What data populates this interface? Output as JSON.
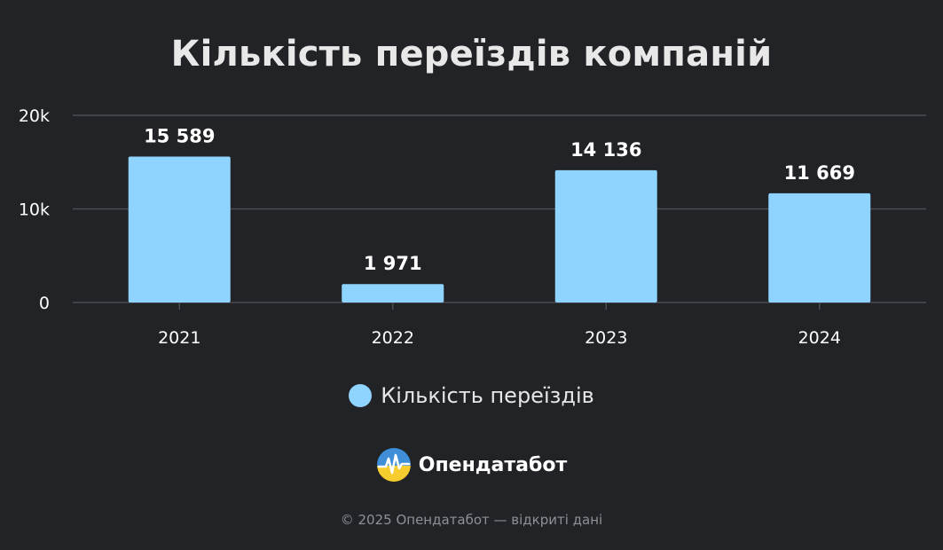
{
  "chart_data": {
    "type": "bar",
    "title": "Кількість переїздів компаній",
    "categories": [
      "2021",
      "2022",
      "2023",
      "2024"
    ],
    "series": [
      {
        "name": "Кількість переїздів",
        "values": [
          15589,
          1971,
          14136,
          11669
        ]
      }
    ],
    "data_labels": [
      "15 589",
      "1 971",
      "14 136",
      "11 669"
    ],
    "ylim": [
      0,
      20000
    ],
    "y_ticks": [
      0,
      10000,
      20000
    ],
    "y_tick_labels": [
      "0",
      "10k",
      "20k"
    ],
    "grid": true,
    "legend_position": "bottom-center",
    "colors": {
      "bar": "#8ed4ff",
      "background": "#212327",
      "grid": "#4a4d53"
    }
  },
  "brand": {
    "name": "Опендатабот",
    "logo_icon": "opendatabot-logo-icon"
  },
  "footer": {
    "text": "© 2025 Опендатабот — відкриті дані"
  }
}
